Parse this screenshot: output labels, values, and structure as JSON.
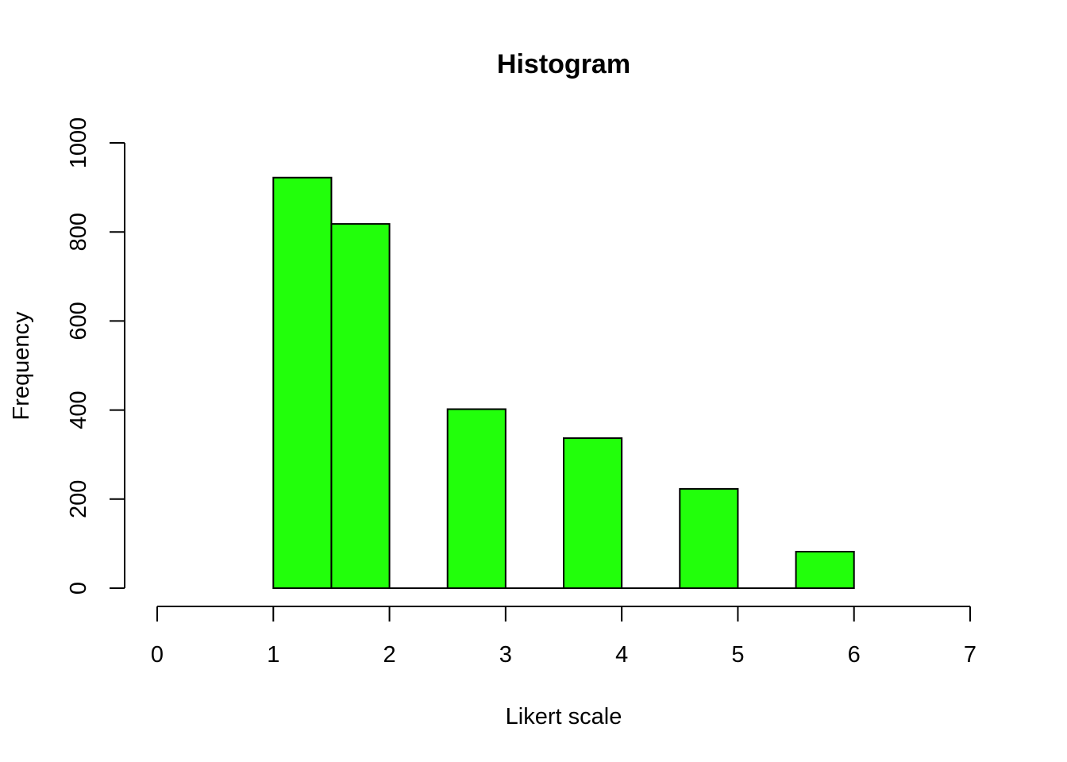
{
  "chart_data": {
    "type": "bar",
    "title": "Histogram",
    "xlabel": "Likert scale",
    "ylabel": "Frequency",
    "bar_color": "#22ff0b",
    "bins": [
      {
        "start": 1.0,
        "end": 1.5,
        "count": 922
      },
      {
        "start": 1.5,
        "end": 2.0,
        "count": 818
      },
      {
        "start": 2.0,
        "end": 2.5,
        "count": 0
      },
      {
        "start": 2.5,
        "end": 3.0,
        "count": 402
      },
      {
        "start": 3.0,
        "end": 3.5,
        "count": 0
      },
      {
        "start": 3.5,
        "end": 4.0,
        "count": 337
      },
      {
        "start": 4.0,
        "end": 4.5,
        "count": 0
      },
      {
        "start": 4.5,
        "end": 5.0,
        "count": 223
      },
      {
        "start": 5.0,
        "end": 5.5,
        "count": 0
      },
      {
        "start": 5.5,
        "end": 6.0,
        "count": 82
      }
    ],
    "xlim": [
      0,
      7
    ],
    "ylim": [
      0,
      1000
    ],
    "x_ticks": [
      "0",
      "1",
      "2",
      "3",
      "4",
      "5",
      "6",
      "7"
    ],
    "y_ticks": [
      "0",
      "200",
      "400",
      "600",
      "800",
      "1000"
    ],
    "grid": false,
    "legend": "none"
  }
}
